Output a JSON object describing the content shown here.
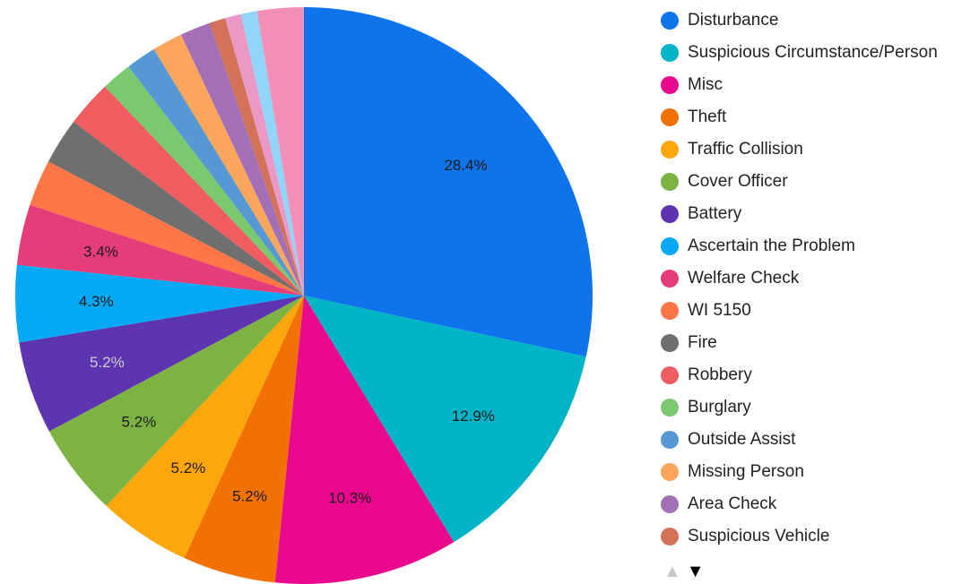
{
  "chart_data": {
    "type": "pie",
    "slices": [
      {
        "label": "Disturbance",
        "value": 28.4,
        "color": "#0d74ec",
        "data_label": "28.4%",
        "label_color": "#1a1a1a"
      },
      {
        "label": "Suspicious Circumstance/Person",
        "value": 12.9,
        "color": "#00b4c8",
        "data_label": "12.9%",
        "label_color": "#1a1a1a"
      },
      {
        "label": "Misc",
        "value": 10.3,
        "color": "#ea098d",
        "data_label": "10.3%",
        "label_color": "#1a1a1a"
      },
      {
        "label": "Theft",
        "value": 5.2,
        "color": "#f27103",
        "data_label": "5.2%",
        "label_color": "#1a1a1a"
      },
      {
        "label": "Traffic Collision",
        "value": 5.2,
        "color": "#fea70d",
        "data_label": "5.2%",
        "label_color": "#1a1a1a"
      },
      {
        "label": "Cover Officer",
        "value": 5.2,
        "color": "#7cb342",
        "data_label": "5.2%",
        "label_color": "#1a1a1a"
      },
      {
        "label": "Battery",
        "value": 5.2,
        "color": "#5e35b1",
        "data_label": "5.2%",
        "label_color": "#d0d0d0"
      },
      {
        "label": "Ascertain the Problem",
        "value": 4.3,
        "color": "#03a9f4",
        "data_label": "4.3%",
        "label_color": "#1a1a1a"
      },
      {
        "label": "Welfare Check",
        "value": 3.4,
        "color": "#e63d7a",
        "data_label": "3.4%",
        "label_color": "#1a1a1a"
      },
      {
        "label": "WI 5150",
        "value": 2.6,
        "color": "#fe7645",
        "data_label": "",
        "label_color": "#1a1a1a"
      },
      {
        "label": "Fire",
        "value": 2.6,
        "color": "#6f6f6f",
        "data_label": "",
        "label_color": "#1a1a1a"
      },
      {
        "label": "Robbery",
        "value": 2.6,
        "color": "#ef5d61",
        "data_label": "",
        "label_color": "#1a1a1a"
      },
      {
        "label": "Burglary",
        "value": 1.7,
        "color": "#7ac96e",
        "data_label": "",
        "label_color": "#1a1a1a"
      },
      {
        "label": "Outside Assist",
        "value": 1.7,
        "color": "#5598d3",
        "data_label": "",
        "label_color": "#1a1a1a"
      },
      {
        "label": "Missing Person",
        "value": 1.7,
        "color": "#fca55c",
        "data_label": "",
        "label_color": "#1a1a1a"
      },
      {
        "label": "Area Check",
        "value": 1.7,
        "color": "#a36fb5",
        "data_label": "",
        "label_color": "#1a1a1a"
      },
      {
        "label": "Suspicious Vehicle",
        "value": 0.9,
        "color": "#d47259",
        "data_label": "",
        "label_color": "#1a1a1a"
      },
      {
        "label": "",
        "value": 0.9,
        "color": "#ea99c6",
        "data_label": "",
        "label_color": "#1a1a1a"
      },
      {
        "label": "",
        "value": 0.9,
        "color": "#91d5f9",
        "data_label": "",
        "label_color": "#1a1a1a"
      },
      {
        "label": "",
        "value": 2.6,
        "color": "#f28fb6",
        "data_label": "",
        "label_color": "#1a1a1a"
      }
    ],
    "legend_position": "right",
    "title": ""
  },
  "legend": {
    "visible_count": 17,
    "pager_up": "▲",
    "pager_down": "▼"
  }
}
